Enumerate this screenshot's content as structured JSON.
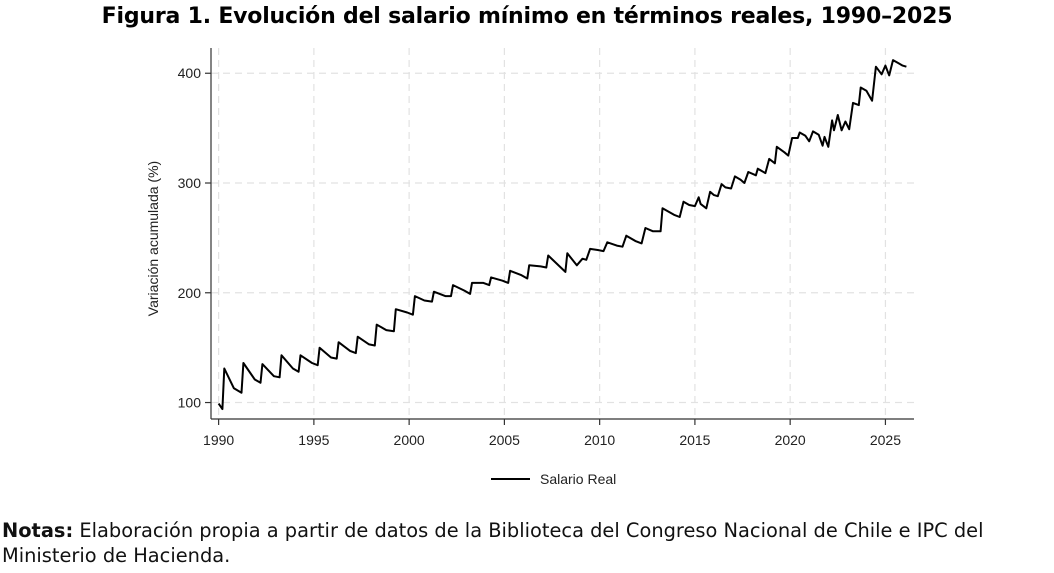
{
  "title": "Figura 1. Evolución del salario mínimo en términos reales, 1990–2025",
  "notes": {
    "label": "Notas:",
    "text": "Elaboración propia a partir de datos de la Biblioteca del Congreso Nacional de Chile e IPC del Ministerio de Hacienda."
  },
  "chart_data": {
    "type": "line",
    "title": "Figura 1. Evolución del salario mínimo en términos reales, 1990–2025",
    "xlabel": "",
    "ylabel": "Variación acumulada (%)",
    "xlim": [
      1989.6,
      2026.5
    ],
    "ylim": [
      85,
      423
    ],
    "xticks": [
      1990,
      1995,
      2000,
      2005,
      2010,
      2015,
      2020,
      2025
    ],
    "yticks": [
      100,
      200,
      300,
      400
    ],
    "grid": true,
    "legend": "bottom-center",
    "series": [
      {
        "name": "Salario Real",
        "color": "#000000",
        "points": [
          [
            1990.0,
            99
          ],
          [
            1990.2,
            94
          ],
          [
            1990.3,
            131
          ],
          [
            1990.8,
            113
          ],
          [
            1991.2,
            109
          ],
          [
            1991.3,
            136
          ],
          [
            1991.9,
            121
          ],
          [
            1992.2,
            118
          ],
          [
            1992.3,
            135
          ],
          [
            1992.9,
            124
          ],
          [
            1993.2,
            123
          ],
          [
            1993.3,
            143
          ],
          [
            1993.9,
            131
          ],
          [
            1994.2,
            128
          ],
          [
            1994.3,
            143
          ],
          [
            1994.9,
            136
          ],
          [
            1995.2,
            134
          ],
          [
            1995.3,
            150
          ],
          [
            1995.9,
            141
          ],
          [
            1996.2,
            140
          ],
          [
            1996.3,
            155
          ],
          [
            1996.9,
            147
          ],
          [
            1997.2,
            145
          ],
          [
            1997.3,
            160
          ],
          [
            1997.9,
            153
          ],
          [
            1998.2,
            152
          ],
          [
            1998.3,
            171
          ],
          [
            1998.8,
            166
          ],
          [
            1999.2,
            165
          ],
          [
            1999.3,
            185
          ],
          [
            1999.9,
            182
          ],
          [
            2000.2,
            180
          ],
          [
            2000.3,
            197
          ],
          [
            2000.8,
            193
          ],
          [
            2001.2,
            192
          ],
          [
            2001.3,
            201
          ],
          [
            2001.9,
            197
          ],
          [
            2002.2,
            197
          ],
          [
            2002.3,
            207
          ],
          [
            2002.9,
            202
          ],
          [
            2003.2,
            199
          ],
          [
            2003.3,
            209
          ],
          [
            2003.9,
            209
          ],
          [
            2004.2,
            207
          ],
          [
            2004.3,
            214
          ],
          [
            2004.9,
            211
          ],
          [
            2005.2,
            209
          ],
          [
            2005.3,
            220
          ],
          [
            2005.9,
            216
          ],
          [
            2006.2,
            213
          ],
          [
            2006.3,
            225
          ],
          [
            2006.9,
            224
          ],
          [
            2007.2,
            223
          ],
          [
            2007.3,
            234
          ],
          [
            2007.9,
            224
          ],
          [
            2008.2,
            219
          ],
          [
            2008.3,
            236
          ],
          [
            2008.8,
            225
          ],
          [
            2009.1,
            231
          ],
          [
            2009.3,
            230
          ],
          [
            2009.5,
            240
          ],
          [
            2009.9,
            239
          ],
          [
            2010.2,
            238
          ],
          [
            2010.4,
            246
          ],
          [
            2010.9,
            243
          ],
          [
            2011.2,
            242
          ],
          [
            2011.4,
            252
          ],
          [
            2011.9,
            247
          ],
          [
            2012.2,
            245
          ],
          [
            2012.4,
            259
          ],
          [
            2012.8,
            256
          ],
          [
            2013.2,
            256
          ],
          [
            2013.3,
            277
          ],
          [
            2013.9,
            271
          ],
          [
            2014.2,
            269
          ],
          [
            2014.4,
            283
          ],
          [
            2014.7,
            280
          ],
          [
            2015.0,
            279
          ],
          [
            2015.2,
            287
          ],
          [
            2015.3,
            281
          ],
          [
            2015.6,
            277
          ],
          [
            2015.8,
            292
          ],
          [
            2016.0,
            289
          ],
          [
            2016.2,
            288
          ],
          [
            2016.4,
            299
          ],
          [
            2016.6,
            296
          ],
          [
            2016.9,
            295
          ],
          [
            2017.1,
            306
          ],
          [
            2017.4,
            303
          ],
          [
            2017.6,
            300
          ],
          [
            2017.8,
            310
          ],
          [
            2018.2,
            307
          ],
          [
            2018.3,
            313
          ],
          [
            2018.7,
            309
          ],
          [
            2018.9,
            322
          ],
          [
            2019.2,
            318
          ],
          [
            2019.3,
            333
          ],
          [
            2019.7,
            328
          ],
          [
            2019.9,
            325
          ],
          [
            2020.1,
            341
          ],
          [
            2020.4,
            341
          ],
          [
            2020.5,
            346
          ],
          [
            2020.8,
            343
          ],
          [
            2021.0,
            338
          ],
          [
            2021.2,
            347
          ],
          [
            2021.5,
            344
          ],
          [
            2021.7,
            334
          ],
          [
            2021.8,
            342
          ],
          [
            2022.0,
            333
          ],
          [
            2022.2,
            357
          ],
          [
            2022.3,
            348
          ],
          [
            2022.5,
            362
          ],
          [
            2022.7,
            348
          ],
          [
            2022.9,
            356
          ],
          [
            2023.1,
            349
          ],
          [
            2023.3,
            373
          ],
          [
            2023.6,
            371
          ],
          [
            2023.7,
            387
          ],
          [
            2024.0,
            384
          ],
          [
            2024.3,
            375
          ],
          [
            2024.5,
            406
          ],
          [
            2024.8,
            399
          ],
          [
            2025.0,
            407
          ],
          [
            2025.2,
            398
          ],
          [
            2025.4,
            412
          ],
          [
            2025.7,
            409
          ],
          [
            2025.9,
            407
          ],
          [
            2026.1,
            406
          ]
        ]
      }
    ]
  }
}
